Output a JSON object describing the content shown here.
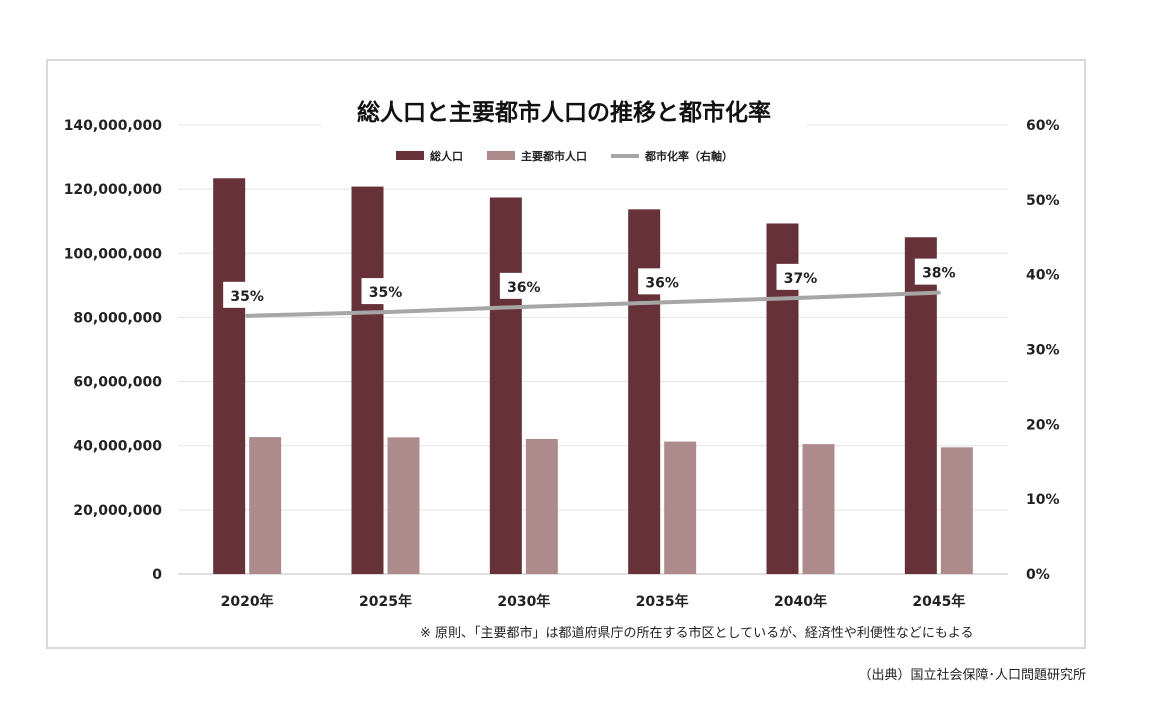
{
  "chart_data": {
    "type": "bar",
    "title": "総人口と主要都市人口の推移と都市化率",
    "categories": [
      "2020年",
      "2025年",
      "2030年",
      "2035年",
      "2040年",
      "2045年"
    ],
    "series": [
      {
        "name": "総人口",
        "kind": "bar",
        "axis": "left",
        "color": "#673139",
        "values": [
          123400000,
          120800000,
          117400000,
          113700000,
          109300000,
          105000000
        ]
      },
      {
        "name": "主要都市人口",
        "kind": "bar",
        "axis": "left",
        "color": "#ad8b8d",
        "values": [
          42700000,
          42600000,
          42100000,
          41300000,
          40500000,
          39500000
        ]
      },
      {
        "name": "都市化率（右軸）",
        "kind": "line",
        "axis": "right",
        "color": "#a6a6a6",
        "values": [
          0.345,
          0.35,
          0.357,
          0.363,
          0.369,
          0.376
        ],
        "data_labels": [
          "35%",
          "35%",
          "36%",
          "36%",
          "37%",
          "38%"
        ]
      }
    ],
    "y_left": {
      "range": [
        0,
        140000000
      ],
      "ticks": [
        "0",
        "20,000,000",
        "40,000,000",
        "60,000,000",
        "80,000,000",
        "100,000,000",
        "120,000,000",
        "140,000,000"
      ]
    },
    "y_right": {
      "range": [
        0,
        0.6
      ],
      "ticks": [
        "0%",
        "10%",
        "20%",
        "30%",
        "40%",
        "50%",
        "60%"
      ]
    },
    "grid": true,
    "legend_position": "top"
  },
  "note": "※ 原則、「主要都市」は都道府県庁の所在する市区としているが、経済性や利便性などにもよる",
  "source": "（出典）国立社会保障･人口問題研究所"
}
